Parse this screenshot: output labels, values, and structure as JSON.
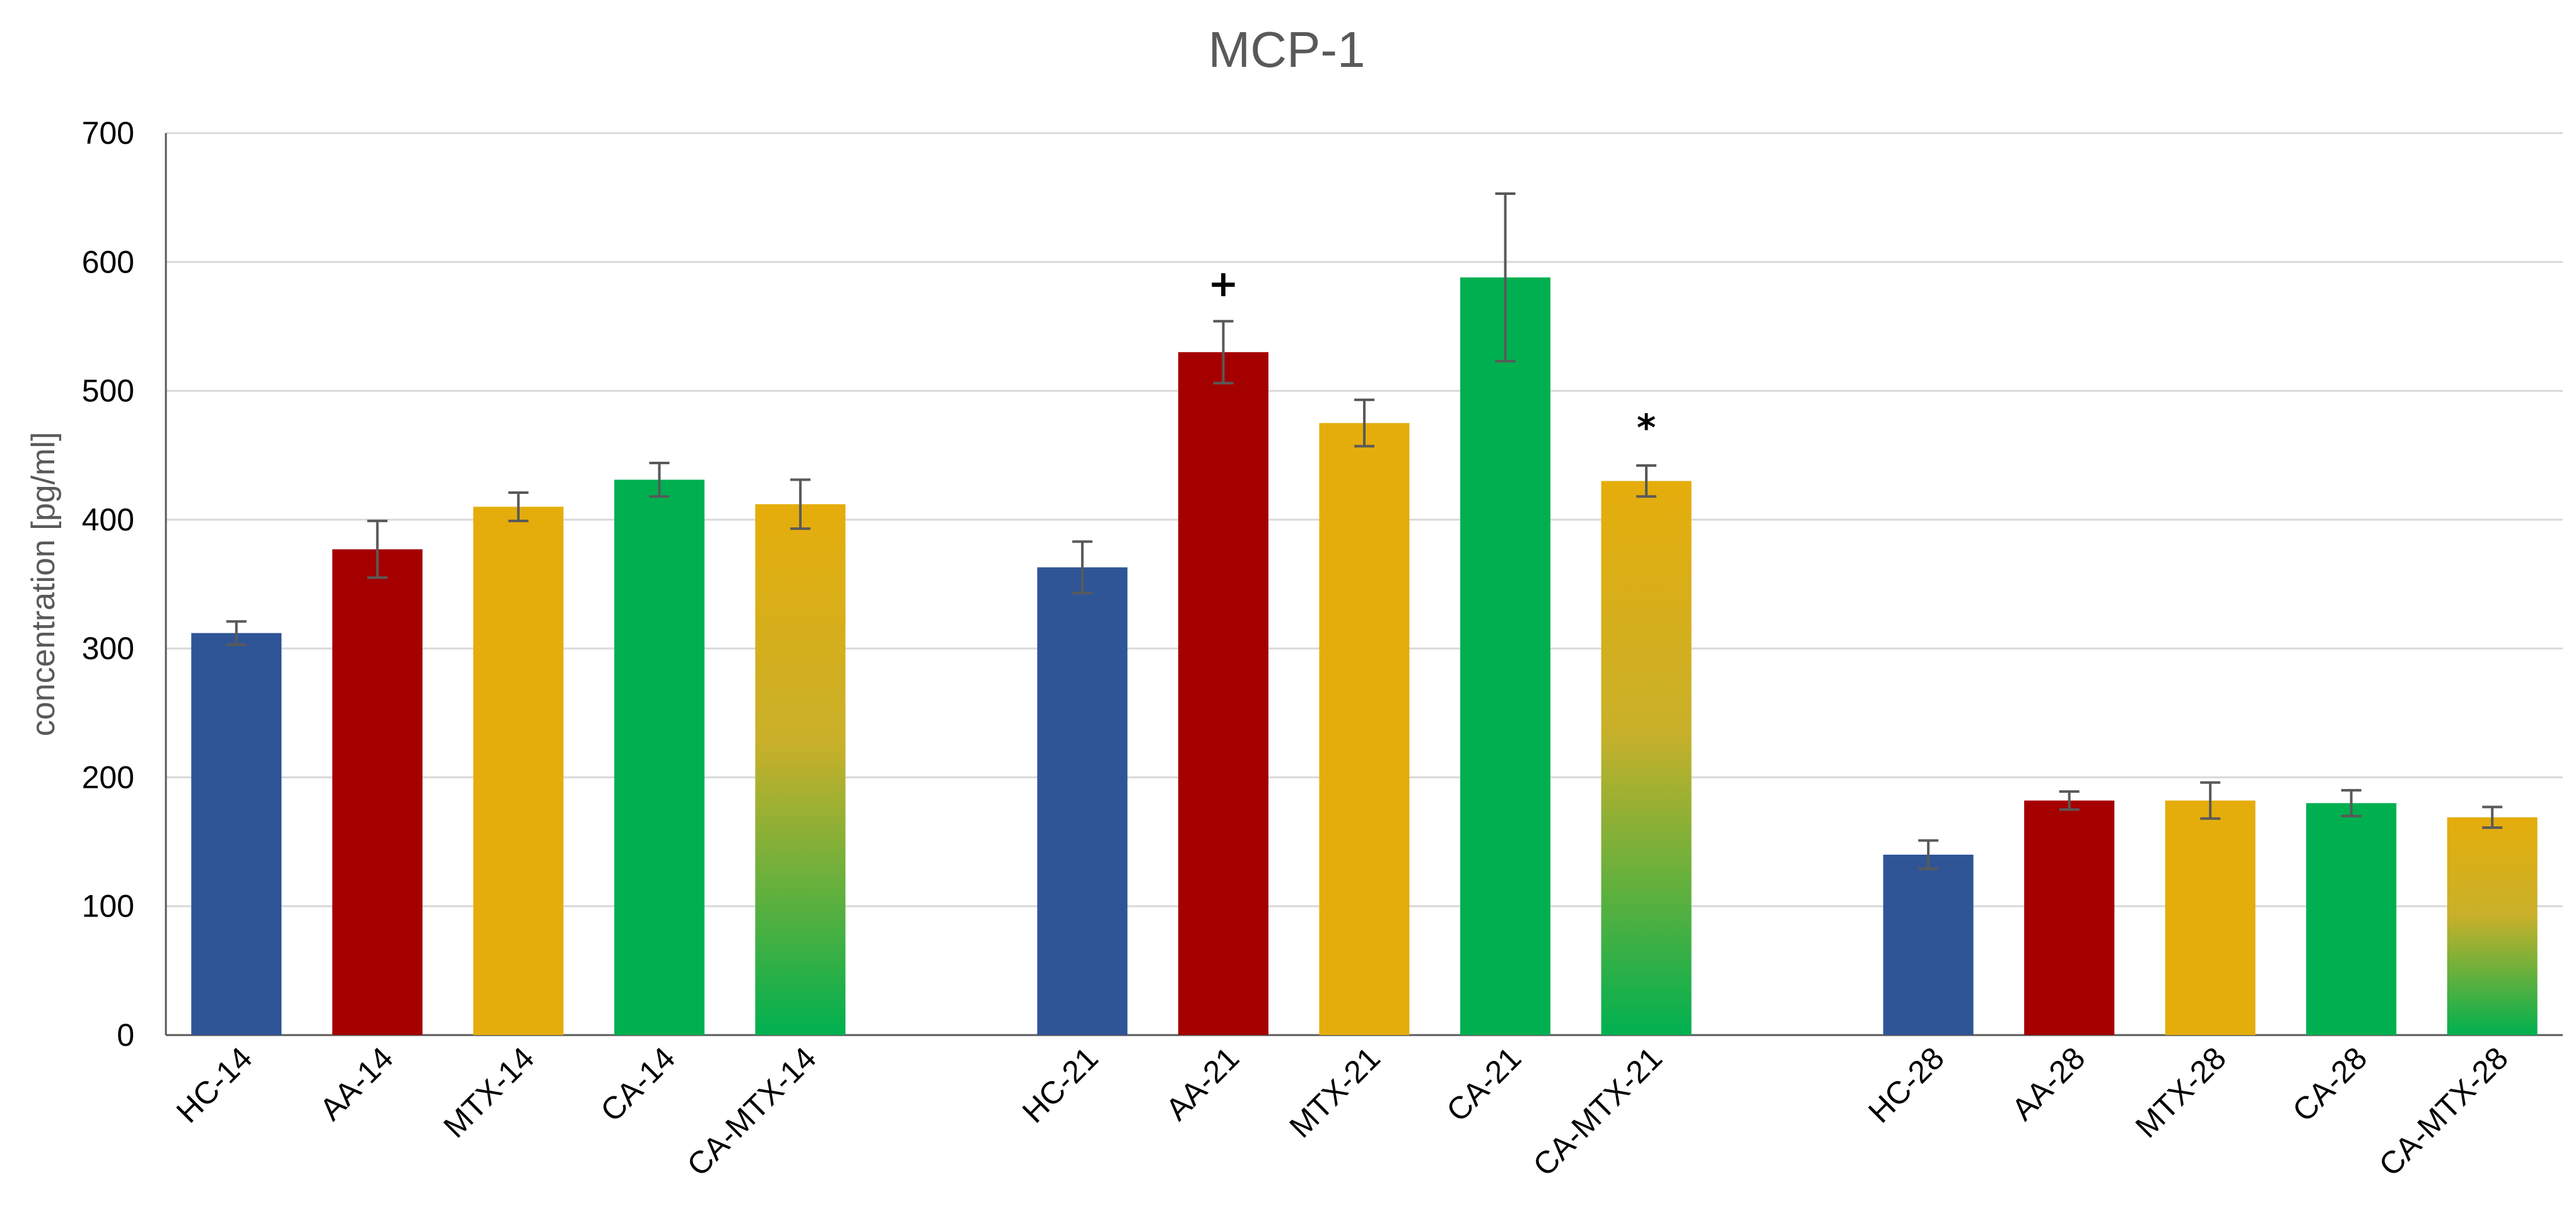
{
  "chart_data": {
    "type": "bar",
    "title": "MCP-1",
    "xlabel": "",
    "ylabel": "concentration [pg/ml]",
    "ylim": [
      0,
      700
    ],
    "yticks": [
      0,
      100,
      200,
      300,
      400,
      500,
      600,
      700
    ],
    "grid": true,
    "groups": [
      {
        "bars": [
          {
            "label": "HC-14",
            "value": 312,
            "error": 9,
            "color_key": "HC",
            "annotation": ""
          },
          {
            "label": "AA-14",
            "value": 377,
            "error": 22,
            "color_key": "AA",
            "annotation": ""
          },
          {
            "label": "MTX-14",
            "value": 410,
            "error": 11,
            "color_key": "MTX",
            "annotation": ""
          },
          {
            "label": "CA-14",
            "value": 431,
            "error": 13,
            "color_key": "CA",
            "annotation": ""
          },
          {
            "label": "CA-MTX-14",
            "value": 412,
            "error": 19,
            "color_key": "CA-MTX",
            "annotation": ""
          }
        ]
      },
      {
        "bars": [
          {
            "label": "HC-21",
            "value": 363,
            "error": 20,
            "color_key": "HC",
            "annotation": ""
          },
          {
            "label": "AA-21",
            "value": 530,
            "error": 24,
            "color_key": "AA",
            "annotation": "+"
          },
          {
            "label": "MTX-21",
            "value": 475,
            "error": 18,
            "color_key": "MTX",
            "annotation": ""
          },
          {
            "label": "CA-21",
            "value": 588,
            "error": 65,
            "color_key": "CA",
            "annotation": ""
          },
          {
            "label": "CA-MTX-21",
            "value": 430,
            "error": 12,
            "color_key": "CA-MTX",
            "annotation": "*"
          }
        ]
      },
      {
        "bars": [
          {
            "label": "HC-28",
            "value": 140,
            "error": 11,
            "color_key": "HC",
            "annotation": ""
          },
          {
            "label": "AA-28",
            "value": 182,
            "error": 7,
            "color_key": "AA",
            "annotation": ""
          },
          {
            "label": "MTX-28",
            "value": 182,
            "error": 14,
            "color_key": "MTX",
            "annotation": ""
          },
          {
            "label": "CA-28",
            "value": 180,
            "error": 10,
            "color_key": "CA",
            "annotation": ""
          },
          {
            "label": "CA-MTX-28",
            "value": 169,
            "error": 8,
            "color_key": "CA-MTX",
            "annotation": ""
          }
        ]
      }
    ],
    "colors": {
      "HC": "#2F5597",
      "AA": "#A50000",
      "MTX": "#E5AD0B",
      "CA": "#00B050",
      "CA-MTX-top": "#E5AD0B",
      "CA-MTX-bottom": "#00B050"
    }
  }
}
